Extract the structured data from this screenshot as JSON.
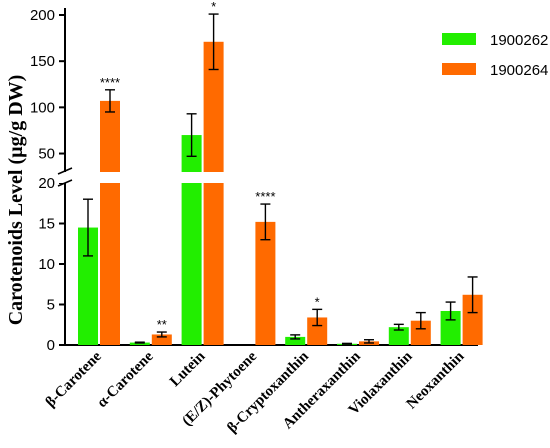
{
  "chart_data": {
    "type": "bar",
    "ylabel": "Carotenoids Level (µg/g DW)",
    "xlabel": "",
    "title": "",
    "y_axis": {
      "broken": true,
      "lower_range": [
        0,
        20
      ],
      "upper_range": [
        30,
        200
      ],
      "lower_ticks": [
        "0",
        "5",
        "10",
        "15",
        "20"
      ],
      "upper_ticks": [
        "50",
        "100",
        "150",
        "200"
      ]
    },
    "categories": [
      "β-Carotene",
      "α-Carotene",
      "Lutein",
      "(E/Z)-Phytoene",
      "β-Cryptoxanthin",
      "Antheraxanthin",
      "Violaxanthin",
      "Neoxanthin"
    ],
    "series": [
      {
        "name": "1900262",
        "color": "#22ee00",
        "values": [
          14.5,
          0.3,
          70,
          0,
          1.0,
          0.15,
          2.2,
          4.2
        ],
        "errors": [
          3.5,
          0.05,
          23,
          0,
          0.25,
          0.05,
          0.35,
          1.1
        ]
      },
      {
        "name": "1900264",
        "color": "#ff6a00",
        "values": [
          107,
          1.3,
          171,
          15.2,
          3.4,
          0.45,
          3.0,
          6.2
        ],
        "errors": [
          12,
          0.3,
          30,
          2.2,
          1.0,
          0.2,
          1.0,
          2.2
        ]
      }
    ],
    "significance": [
      "****",
      "**",
      "*",
      "****",
      "*",
      "",
      "",
      ""
    ],
    "legend": {
      "position": "top-right",
      "entries": [
        "1900262",
        "1900264"
      ]
    },
    "grid": false
  }
}
